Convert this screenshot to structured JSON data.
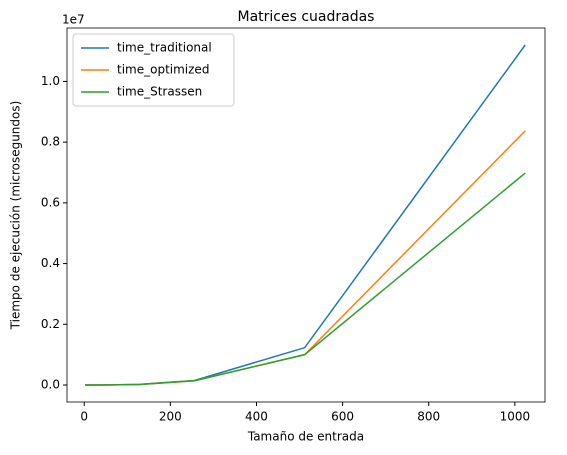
{
  "chart_data": {
    "type": "line",
    "title": "Matrices cuadradas",
    "x_label": "Tamaño de entrada",
    "y_label": "Tiempo de ejecución (microsegundos)",
    "y_offset_label": "1e7",
    "x": [
      2,
      4,
      8,
      16,
      32,
      64,
      128,
      256,
      512,
      1024
    ],
    "series": [
      {
        "name": "time_traditional",
        "color": "#1f77b4",
        "values": [
          0,
          1,
          5,
          43,
          340,
          2700,
          22000,
          150000,
          1230000,
          11200000
        ]
      },
      {
        "name": "time_optimized",
        "color": "#ff7f0e",
        "values": [
          0,
          1,
          4,
          35,
          280,
          2200,
          18000,
          140000,
          1000000,
          8370000
        ]
      },
      {
        "name": "time_Strassen",
        "color": "#2ca02c",
        "values": [
          0,
          1,
          4,
          35,
          280,
          2200,
          18000,
          140000,
          1000000,
          6980000
        ]
      }
    ],
    "xlim": [
      -40,
      1070
    ],
    "xticks": [
      0,
      200,
      400,
      600,
      800,
      1000
    ],
    "ylim": [
      -560000,
      11760000
    ],
    "yticks": [
      {
        "value": 0,
        "label": "0.0"
      },
      {
        "value": 2000000,
        "label": "0.2"
      },
      {
        "value": 4000000,
        "label": "0.4"
      },
      {
        "value": 6000000,
        "label": "0.6"
      },
      {
        "value": 8000000,
        "label": "0.8"
      },
      {
        "value": 10000000,
        "label": "1.0"
      }
    ],
    "legend": "upper left",
    "grid": false
  }
}
